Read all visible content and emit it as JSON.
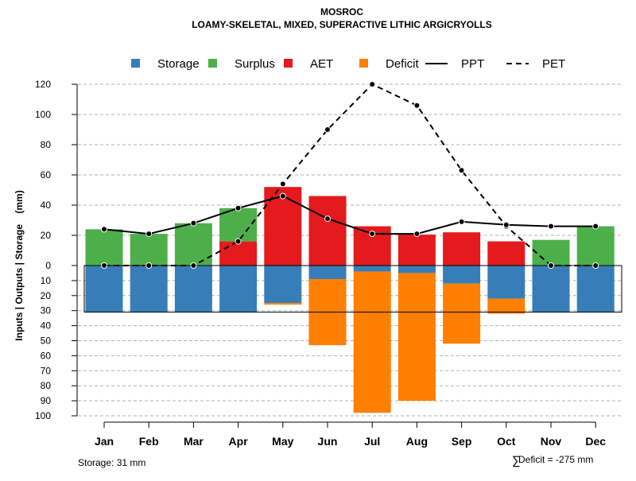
{
  "chart_data": {
    "type": "bar",
    "title": "MOSROC",
    "subtitle": "LOAMY-SKELETAL, MIXED, SUPERACTIVE LITHIC ARGICRYOLLS",
    "xlabel": "",
    "ylabel": "Inputs | Outputs | Storage    (mm)",
    "categories": [
      "Jan",
      "Feb",
      "Mar",
      "Apr",
      "May",
      "Jun",
      "Jul",
      "Aug",
      "Sep",
      "Oct",
      "Nov",
      "Dec"
    ],
    "yticks_upper": [
      0,
      20,
      40,
      60,
      80,
      100,
      120
    ],
    "yticks_lower": [
      10,
      20,
      30,
      40,
      50,
      60,
      70,
      80,
      90,
      100
    ],
    "ylim_upper": [
      0,
      120
    ],
    "ylim_lower": [
      0,
      100
    ],
    "grid": true,
    "legend_position": "top",
    "legend": [
      {
        "name": "Storage",
        "kind": "box",
        "color": "#377EB8"
      },
      {
        "name": "Surplus",
        "kind": "box",
        "color": "#4DAF4A"
      },
      {
        "name": "AET",
        "kind": "box",
        "color": "#E41A1C"
      },
      {
        "name": "Deficit",
        "kind": "box",
        "color": "#FF7F00"
      },
      {
        "name": "PPT",
        "kind": "solid-line",
        "color": "#000000"
      },
      {
        "name": "PET",
        "kind": "dashed-line",
        "color": "#000000"
      }
    ],
    "storage_capacity": 31,
    "series": [
      {
        "name": "Surplus",
        "color": "#4DAF4A",
        "values": [
          24,
          21,
          28,
          22,
          0,
          0,
          0,
          0,
          0,
          0,
          17,
          26
        ]
      },
      {
        "name": "AET",
        "color": "#E41A1C",
        "values": [
          0,
          0,
          0,
          16,
          52,
          46,
          26,
          20.5,
          22,
          16,
          0,
          0
        ]
      },
      {
        "name": "Storage",
        "color": "#377EB8",
        "values": [
          31,
          31,
          31,
          31,
          25,
          9,
          4,
          5,
          12,
          22,
          31,
          31
        ]
      },
      {
        "name": "Deficit",
        "color": "#FF7F00",
        "values": [
          0,
          0,
          0,
          0,
          1,
          44,
          94,
          85,
          40,
          10,
          0,
          0
        ]
      },
      {
        "name": "PPT",
        "color": "#000000",
        "values": [
          24,
          21,
          28,
          38,
          46,
          31,
          21,
          21,
          29,
          27,
          26,
          26
        ]
      },
      {
        "name": "PET",
        "color": "#000000",
        "values": [
          0,
          0,
          0,
          16,
          54,
          90,
          120,
          106,
          63,
          26,
          0,
          0
        ]
      }
    ]
  },
  "annotations": {
    "storage_note": "Storage: 31 mm",
    "deficit_symbol": "∑",
    "deficit_note": "Deficit = -275 mm"
  }
}
